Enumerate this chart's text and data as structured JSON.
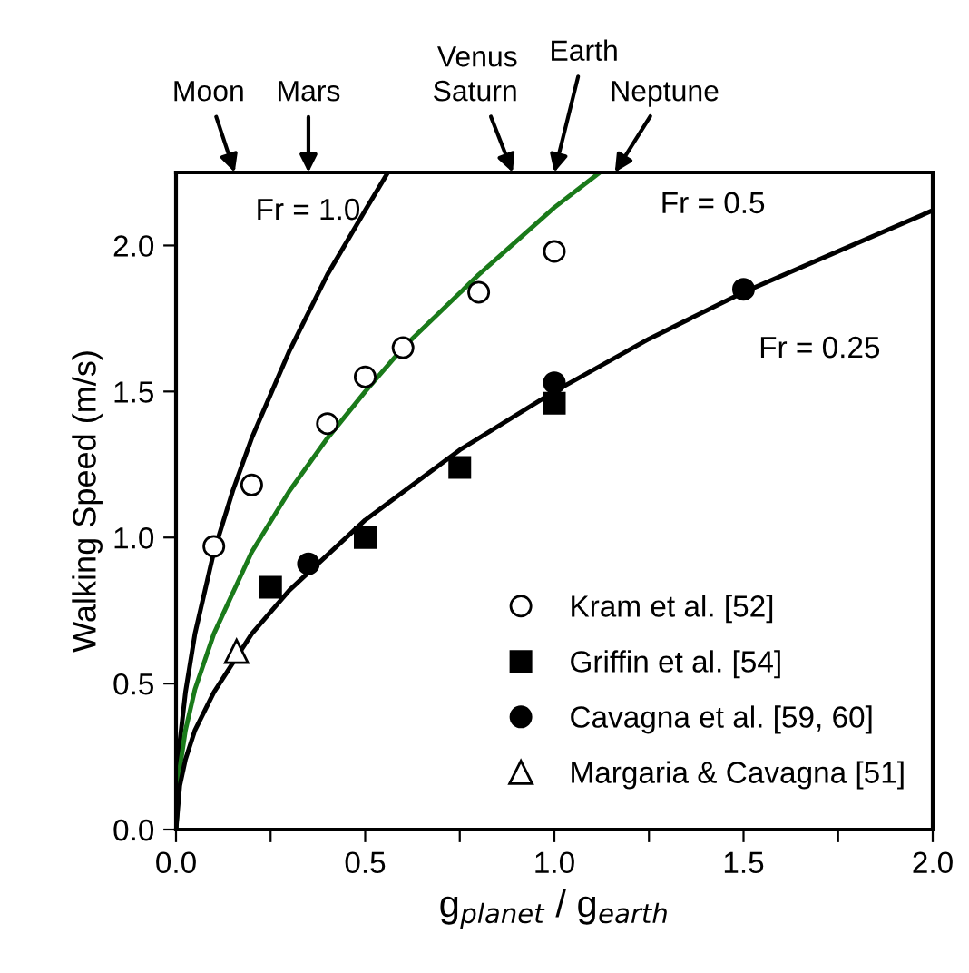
{
  "chart_data": {
    "type": "scatter",
    "xlabel": "g$_{planet}$ / g$_{earth}$",
    "ylabel": "Walking Speed (m/s)",
    "xlim": [
      0,
      2.0
    ],
    "ylim": [
      0,
      2.25
    ],
    "xticks": [
      {
        "value": 0,
        "label": "0.0"
      },
      {
        "value": 0.25,
        "label": null
      },
      {
        "value": 0.5,
        "label": "0.5"
      },
      {
        "value": 0.75,
        "label": null
      },
      {
        "value": 1.0,
        "label": "1.0"
      },
      {
        "value": 1.25,
        "label": null
      },
      {
        "value": 1.5,
        "label": "1.5"
      },
      {
        "value": 1.75,
        "label": null
      },
      {
        "value": 2.0,
        "label": "2.0"
      }
    ],
    "yticks": [
      {
        "value": 0,
        "label": "0.0"
      },
      {
        "value": 0.5,
        "label": "0.5"
      },
      {
        "value": 1.0,
        "label": "1.0"
      },
      {
        "value": 1.5,
        "label": "1.5"
      },
      {
        "value": 2.0,
        "label": "2.0"
      }
    ],
    "grid": false,
    "legend": "bottom right",
    "series": [
      {
        "type": "line",
        "color": "#000000",
        "marker": "none",
        "x": [
          0,
          0.01,
          0.025,
          0.05,
          0.1,
          0.15,
          0.2,
          0.3,
          0.4,
          0.5,
          0.56
        ],
        "values": [
          0,
          0.3,
          0.47,
          0.67,
          0.95,
          1.16,
          1.34,
          1.64,
          1.9,
          2.12,
          2.25
        ]
      },
      {
        "type": "line",
        "color": "#1a7a1a",
        "marker": "none",
        "x": [
          0,
          0.01,
          0.025,
          0.05,
          0.1,
          0.2,
          0.3,
          0.4,
          0.5,
          0.6,
          0.8,
          1.0,
          1.12
        ],
        "values": [
          0,
          0.21,
          0.34,
          0.48,
          0.67,
          0.95,
          1.16,
          1.34,
          1.5,
          1.65,
          1.9,
          2.13,
          2.25
        ]
      },
      {
        "type": "line",
        "color": "#000000",
        "marker": "none",
        "x": [
          0,
          0.01,
          0.025,
          0.05,
          0.1,
          0.2,
          0.3,
          0.5,
          0.75,
          1.0,
          1.25,
          1.5,
          1.75,
          2.0
        ],
        "values": [
          0,
          0.15,
          0.24,
          0.34,
          0.47,
          0.67,
          0.82,
          1.06,
          1.3,
          1.5,
          1.68,
          1.84,
          1.98,
          2.12
        ]
      },
      {
        "name": "Kram et al. [52]",
        "marker": "circle",
        "color": "#ffffff",
        "x": [
          0.1,
          0.2,
          0.4,
          0.5,
          0.6,
          0.8,
          1.0
        ],
        "values": [
          0.97,
          1.18,
          1.39,
          1.55,
          1.65,
          1.84,
          1.98
        ]
      },
      {
        "name": "Griffin et al. [54]",
        "marker": "square",
        "color": "#000000",
        "x": [
          0.25,
          0.5,
          0.75,
          1.0
        ],
        "values": [
          0.83,
          1.0,
          1.24,
          1.46
        ]
      },
      {
        "name": "Cavagna et al. [59, 60]",
        "marker": "circle",
        "color": "#000000",
        "x": [
          0.35,
          1.0,
          1.5
        ],
        "values": [
          0.91,
          1.53,
          1.85
        ]
      },
      {
        "name": "Margaria & Cavagna [51]",
        "marker": "triangle",
        "color": "#ffffff",
        "x": [
          0.16
        ],
        "values": [
          0.61
        ]
      }
    ],
    "annotations": [
      "Fr = 1.0",
      "Fr = 0.5",
      "Fr = 0.25",
      "Moon",
      "Mars",
      "Venus\nSaturn",
      "Earth",
      "Neptune"
    ]
  }
}
